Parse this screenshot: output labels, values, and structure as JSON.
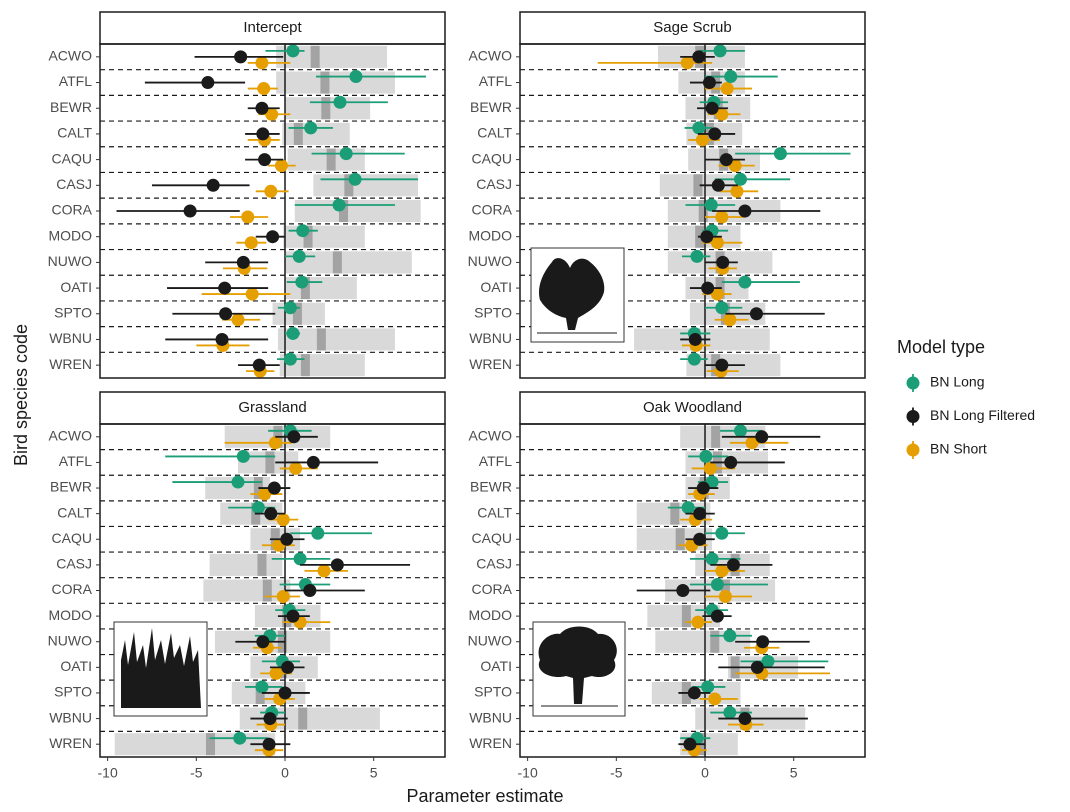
{
  "chart_data": {
    "type": "dotwhisker",
    "x_label": "Parameter estimate",
    "y_label": "Bird species code",
    "legend_title": "Model type",
    "xlim": [
      -10.43,
      9.02
    ],
    "xticks": [
      -10,
      -5,
      0,
      5
    ],
    "band_color": "#d9d9d9",
    "band_mid_color": "#a3a3a3",
    "panels": [
      {
        "title": "Intercept",
        "categories": [
          "ACWO",
          "ATFL",
          "BEWR",
          "CALT",
          "CAQU",
          "CASJ",
          "CORA",
          "MODO",
          "NUWO",
          "OATI",
          "SPTO",
          "WBNU",
          "WREN"
        ],
        "band_low": [
          -0.5,
          -0.5,
          0,
          -0.15,
          0.15,
          1.6,
          0.55,
          -0.1,
          0,
          0,
          -0.7,
          -0.4,
          -0.3
        ],
        "band_high": [
          5.75,
          6.2,
          4.8,
          3.65,
          4.5,
          7.5,
          7.65,
          4.5,
          7.15,
          4.05,
          2.25,
          6.2,
          4.5
        ],
        "band_mid": [
          1.7,
          2.25,
          2.3,
          0.75,
          2.6,
          3.6,
          3.3,
          1.3,
          2.95,
          1.15,
          0.7,
          2.05,
          1.15
        ],
        "series": [
          {
            "name": "BN Long",
            "color": "#1b9e77",
            "values": [
              0.45,
              4.0,
              3.1,
              1.45,
              3.45,
              3.95,
              3.05,
              1.0,
              0.8,
              0.95,
              0.3,
              0.45,
              0.3
            ],
            "lower": [
              -1.1,
              1.75,
              1.4,
              0.2,
              1.5,
              2.0,
              0.55,
              0.2,
              0,
              0.1,
              -0.4,
              0,
              -0.45
            ],
            "upper": [
              1.1,
              7.95,
              5.8,
              2.7,
              6.75,
              7.5,
              6.2,
              1.85,
              1.7,
              2.1,
              0.85,
              0.85,
              1.1
            ]
          },
          {
            "name": "BN Long Filtered",
            "color": "#1a1a1a",
            "values": [
              -2.5,
              -4.35,
              -1.3,
              -1.25,
              -1.15,
              -4.05,
              -5.35,
              -0.7,
              -2.35,
              -3.4,
              -3.35,
              -3.55,
              -1.45
            ],
            "lower": [
              -5.1,
              -7.9,
              -2.1,
              -2.25,
              -2.25,
              -7.5,
              -9.5,
              -1.65,
              -4.5,
              -6.65,
              -6.35,
              -6.75,
              -2.65
            ],
            "upper": [
              -0.1,
              -2.25,
              -0.3,
              -0.3,
              -0.1,
              -2.0,
              -2.55,
              0,
              -0.95,
              -0.95,
              -0.55,
              -0.95,
              -0.3
            ]
          },
          {
            "name": "BN Short",
            "color": "#e69f00",
            "values": [
              -1.3,
              -1.2,
              -0.75,
              -1.15,
              -0.2,
              -0.8,
              -2.1,
              -1.9,
              -2.3,
              -1.85,
              -2.65,
              -3.5,
              -1.4
            ],
            "lower": [
              -2.1,
              -2.1,
              -1.5,
              -2.1,
              -0.95,
              -1.65,
              -3.1,
              -2.75,
              -3.5,
              -4.7,
              -3.55,
              -5.0,
              -2.2
            ],
            "upper": [
              0.3,
              -0.4,
              0.3,
              -0.3,
              0.6,
              0.2,
              -0.95,
              -1.05,
              -1.0,
              0.3,
              -1.4,
              -2.0,
              -0.6
            ]
          }
        ]
      },
      {
        "title": "Sage Scrub",
        "categories": [
          "ACWO",
          "ATFL",
          "BEWR",
          "CALT",
          "CAQU",
          "CASJ",
          "CORA",
          "MODO",
          "NUWO",
          "OATI",
          "SPTO",
          "WBNU",
          "WREN"
        ],
        "band_low": [
          -2.65,
          -1.5,
          -1.1,
          -1.05,
          -0.95,
          -2.55,
          -2.1,
          -2.1,
          -2.1,
          -1.1,
          -0.85,
          -4.0,
          -1.05
        ],
        "band_high": [
          2.25,
          2.25,
          2.55,
          2.1,
          3.1,
          1.7,
          4.25,
          2.0,
          3.8,
          2.45,
          3.4,
          3.65,
          4.25
        ],
        "band_mid": [
          -0.3,
          0.6,
          0.75,
          0.25,
          1.05,
          -0.4,
          -0.1,
          -0.3,
          0.85,
          0.85,
          1.15,
          -0.55,
          0.6
        ],
        "series": [
          {
            "name": "BN Long",
            "color": "#1b9e77",
            "values": [
              0.85,
              1.45,
              0.5,
              -0.35,
              4.25,
              2.0,
              0.35,
              0.4,
              -0.45,
              2.25,
              0.95,
              -0.6,
              -0.6
            ],
            "lower": [
              -0.3,
              0,
              -0.3,
              -1.15,
              1.7,
              0.55,
              -1.1,
              -0.15,
              -1.3,
              0.95,
              0,
              -1.4,
              -1.4
            ],
            "upper": [
              2.25,
              4.1,
              1.3,
              0.4,
              8.2,
              4.8,
              1.7,
              1.3,
              0.3,
              5.35,
              2.1,
              0.3,
              0.15
            ]
          },
          {
            "name": "BN Long Filtered",
            "color": "#1a1a1a",
            "values": [
              -0.35,
              0.25,
              0.4,
              0.55,
              1.2,
              0.75,
              2.25,
              0.1,
              1.0,
              0.15,
              2.9,
              -0.55,
              0.95
            ],
            "lower": [
              -1.4,
              -0.85,
              -0.45,
              -0.4,
              0,
              -0.3,
              0.4,
              -0.4,
              0,
              -0.85,
              1.15,
              -1.4,
              0
            ],
            "upper": [
              0.55,
              0.95,
              1.3,
              1.7,
              2.25,
              1.85,
              6.5,
              0.95,
              1.85,
              0.95,
              6.75,
              0.3,
              2.25
            ]
          },
          {
            "name": "BN Short",
            "color": "#e69f00",
            "values": [
              -1.0,
              1.25,
              0.95,
              -0.15,
              1.7,
              1.8,
              0.95,
              0.7,
              1.0,
              0.7,
              1.4,
              -0.5,
              0.9
            ],
            "lower": [
              -6.05,
              0,
              0.15,
              -0.95,
              0.75,
              0.85,
              0,
              -0.15,
              0.2,
              -0.15,
              0.55,
              -1.3,
              0.1
            ],
            "upper": [
              0.4,
              2.65,
              2.0,
              0.85,
              2.8,
              3.0,
              2.25,
              2.1,
              1.8,
              1.5,
              2.45,
              0.3,
              1.9
            ]
          }
        ]
      },
      {
        "title": "Grassland",
        "categories": [
          "ACWO",
          "ATFL",
          "BEWR",
          "CALT",
          "CAQU",
          "CASJ",
          "CORA",
          "MODO",
          "NUWO",
          "OATI",
          "SPTO",
          "WBNU",
          "WREN"
        ],
        "band_low": [
          -3.4,
          -2.65,
          -4.5,
          -3.65,
          -1.95,
          -4.25,
          -4.6,
          -1.7,
          -3.95,
          -1.95,
          -3.0,
          -2.55,
          -9.6
        ],
        "band_high": [
          2.55,
          0.75,
          -0.85,
          -0.15,
          0.85,
          -0.15,
          0.3,
          2.0,
          2.55,
          1.85,
          1.15,
          5.35,
          -0.55
        ],
        "band_mid": [
          -0.4,
          -0.85,
          -1.5,
          -1.65,
          -0.55,
          -1.3,
          -1.0,
          0.1,
          -0.15,
          -0.15,
          -1.4,
          1.0,
          -4.2
        ],
        "series": [
          {
            "name": "BN Long",
            "color": "#1b9e77",
            "values": [
              0.3,
              -2.35,
              -2.65,
              -1.5,
              1.85,
              0.85,
              1.15,
              0.25,
              -0.85,
              -0.15,
              -1.3,
              -0.75,
              -2.55
            ],
            "lower": [
              -0.95,
              -6.75,
              -6.35,
              -3.2,
              0.3,
              -0.75,
              -0.3,
              -0.55,
              -1.7,
              -1.3,
              -2.25,
              -1.4,
              -4.25
            ],
            "upper": [
              1.5,
              -0.55,
              -1.3,
              -0.55,
              4.9,
              2.55,
              2.55,
              1.15,
              0,
              0.85,
              -0.15,
              0,
              -0.95
            ]
          },
          {
            "name": "BN Long Filtered",
            "color": "#1a1a1a",
            "values": [
              0.5,
              1.6,
              -0.6,
              -0.8,
              0.1,
              2.95,
              1.4,
              0.45,
              -1.25,
              0.15,
              0,
              -0.85,
              -0.9
            ],
            "lower": [
              -0.55,
              -0.55,
              -1.5,
              -1.7,
              -0.85,
              0.85,
              0,
              -0.4,
              -2.8,
              -0.85,
              -1.3,
              -1.95,
              -1.95
            ],
            "upper": [
              1.85,
              5.25,
              0.3,
              0,
              1.1,
              7.05,
              4.5,
              1.4,
              0,
              1.1,
              1.4,
              0.15,
              0.3
            ]
          },
          {
            "name": "BN Short",
            "color": "#e69f00",
            "values": [
              -0.55,
              0.6,
              -1.15,
              -0.1,
              -0.35,
              2.2,
              -0.1,
              0.85,
              -1.0,
              -0.5,
              -0.3,
              -0.8,
              -0.9
            ],
            "lower": [
              -3.4,
              -0.3,
              -1.95,
              -0.95,
              -1.3,
              1.1,
              -1.15,
              -0.15,
              -1.8,
              -1.4,
              -1.15,
              -1.6,
              -1.7
            ],
            "upper": [
              0.4,
              1.85,
              -0.15,
              0.75,
              0.55,
              3.55,
              0.85,
              2.55,
              -0.2,
              0.4,
              0.55,
              0,
              -0.1
            ]
          }
        ]
      },
      {
        "title": "Oak Woodland",
        "categories": [
          "ACWO",
          "ATFL",
          "BEWR",
          "CALT",
          "CAQU",
          "CASJ",
          "CORA",
          "MODO",
          "NUWO",
          "OATI",
          "SPTO",
          "WBNU",
          "WREN"
        ],
        "band_low": [
          -1.4,
          -1.1,
          -1.1,
          -3.85,
          -3.85,
          -0.55,
          -2.25,
          -3.25,
          -2.8,
          1.3,
          -3.0,
          -0.55,
          -1.4
        ],
        "band_high": [
          3.4,
          3.55,
          1.4,
          0.3,
          0.4,
          3.65,
          3.95,
          0.85,
          2.55,
          5.25,
          2.0,
          5.65,
          1.85
        ],
        "band_mid": [
          0.6,
          0.7,
          -0.05,
          -1.7,
          -1.4,
          1.7,
          1.15,
          -1.05,
          0.55,
          1.7,
          -1.05,
          2.25,
          -0.3
        ],
        "series": [
          {
            "name": "BN Long",
            "color": "#1b9e77",
            "values": [
              2.0,
              0.05,
              0.4,
              -0.95,
              0.95,
              0.4,
              0.7,
              0.4,
              1.4,
              3.55,
              0.15,
              1.4,
              -0.45
            ],
            "lower": [
              0.85,
              -0.95,
              -0.4,
              -2.1,
              0,
              -0.85,
              -0.85,
              -0.55,
              0.3,
              2.0,
              -0.75,
              0.3,
              -1.4
            ],
            "upper": [
              3.2,
              1.3,
              1.3,
              0,
              2.25,
              2.0,
              3.55,
              1.3,
              2.65,
              6.95,
              1.15,
              2.65,
              0.3
            ]
          },
          {
            "name": "BN Long Filtered",
            "color": "#1a1a1a",
            "values": [
              3.2,
              1.45,
              -0.1,
              -0.3,
              -0.3,
              1.6,
              -1.25,
              0.7,
              3.25,
              2.95,
              -0.6,
              2.25,
              -0.85
            ],
            "lower": [
              0.95,
              0.3,
              -0.95,
              -1.1,
              -1.1,
              0.3,
              -3.85,
              -0.15,
              1.7,
              0.75,
              -1.5,
              0.75,
              -1.5
            ],
            "upper": [
              6.5,
              4.5,
              0.75,
              0.55,
              0.55,
              3.8,
              0.3,
              1.5,
              5.9,
              6.75,
              0.3,
              5.8,
              0
            ]
          },
          {
            "name": "BN Short",
            "color": "#e69f00",
            "values": [
              2.65,
              0.3,
              -0.3,
              -0.55,
              -0.75,
              0.95,
              1.15,
              -0.4,
              3.2,
              3.2,
              0.55,
              2.3,
              -0.6
            ],
            "lower": [
              1.4,
              -0.75,
              -0.95,
              -1.4,
              -1.5,
              0,
              0,
              -1.1,
              2.2,
              1.7,
              -0.3,
              1.3,
              -1.3
            ],
            "upper": [
              4.7,
              1.7,
              0.55,
              0.4,
              0.15,
              2.25,
              2.65,
              0.4,
              4.2,
              7.05,
              1.85,
              3.3,
              0.1
            ]
          }
        ]
      }
    ]
  }
}
